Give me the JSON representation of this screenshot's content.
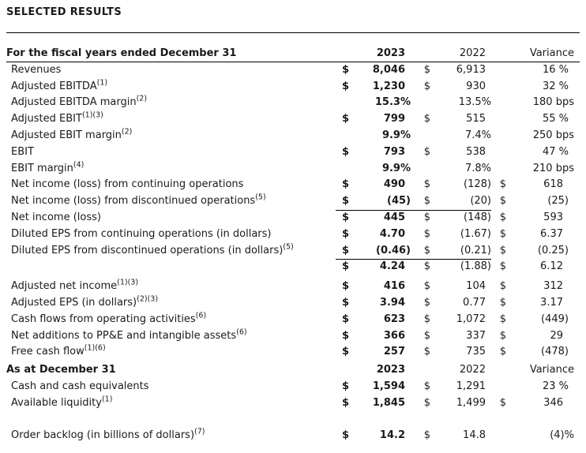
{
  "page": {
    "title": "SELECTED RESULTS"
  },
  "s1": {
    "header": {
      "label": "For the fiscal years ended December 31",
      "c1": "2023",
      "c2": "2022",
      "c3": "Variance"
    },
    "rows": [
      {
        "label": "Revenues",
        "sup": "",
        "d1": "$",
        "v1": "8,046",
        "d2": "$",
        "v2": "6,913",
        "d3": "",
        "v3": "16 %"
      },
      {
        "label": "Adjusted EBITDA",
        "sup": "(1)",
        "d1": "$",
        "v1": "1,230",
        "d2": "$",
        "v2": "930",
        "d3": "",
        "v3": "32 %"
      },
      {
        "label": "Adjusted EBITDA margin",
        "sup": "(2)",
        "d1": "",
        "v1": "15.3%",
        "d2": "",
        "v2": "13.5%",
        "d3": "",
        "v3": "180 bps"
      },
      {
        "label": "Adjusted EBIT",
        "sup": "(1)(3)",
        "d1": "$",
        "v1": "799",
        "d2": "$",
        "v2": "515",
        "d3": "",
        "v3": "55 %"
      },
      {
        "label": "Adjusted EBIT margin",
        "sup": "(2)",
        "d1": "",
        "v1": "9.9%",
        "d2": "",
        "v2": "7.4%",
        "d3": "",
        "v3": "250 bps"
      },
      {
        "label": "EBIT",
        "sup": "",
        "d1": "$",
        "v1": "793",
        "d2": "$",
        "v2": "538",
        "d3": "",
        "v3": "47 %"
      },
      {
        "label": "EBIT margin",
        "sup": "(4)",
        "d1": "",
        "v1": "9.9%",
        "d2": "",
        "v2": "7.8%",
        "d3": "",
        "v3": "210 bps"
      },
      {
        "label": "Net income (loss) from continuing operations",
        "sup": "",
        "d1": "$",
        "v1": "490",
        "d2": "$",
        "v2": "(128)",
        "d3": "$",
        "v3": "618"
      },
      {
        "label": "Net income (loss) from discontinued operations",
        "sup": "(5)",
        "d1": "$",
        "v1": "(45)",
        "d2": "$",
        "v2": "(20)",
        "d3": "$",
        "v3": "(25)"
      },
      {
        "label": "Net income (loss)",
        "sup": "",
        "d1": "$",
        "v1": "445",
        "d2": "$",
        "v2": "(148)",
        "d3": "$",
        "v3": "593"
      },
      {
        "label": "Diluted EPS from continuing operations (in dollars)",
        "sup": "",
        "d1": "$",
        "v1": "4.70",
        "d2": "$",
        "v2": "(1.67)",
        "d3": "$",
        "v3": "6.37"
      },
      {
        "label": "Diluted EPS from discontinued operations (in dollars)",
        "sup": "(5)",
        "d1": "$",
        "v1": "(0.46)",
        "d2": "$",
        "v2": "(0.21)",
        "d3": "$",
        "v3": "(0.25)"
      },
      {
        "label": "",
        "sup": "",
        "d1": "$",
        "v1": "4.24",
        "d2": "$",
        "v2": "(1.88)",
        "d3": "$",
        "v3": "6.12"
      },
      {
        "label": "Adjusted net income",
        "sup": "(1)(3)",
        "d1": "$",
        "v1": "416",
        "d2": "$",
        "v2": "104",
        "d3": "$",
        "v3": "312"
      },
      {
        "label": "Adjusted EPS (in dollars)",
        "sup": "(2)(3)",
        "d1": "$",
        "v1": "3.94",
        "d2": "$",
        "v2": "0.77",
        "d3": "$",
        "v3": "3.17"
      },
      {
        "label": "Cash flows from operating activities",
        "sup": "(6)",
        "d1": "$",
        "v1": "623",
        "d2": "$",
        "v2": "1,072",
        "d3": "$",
        "v3": "(449)"
      },
      {
        "label": "Net additions to PP&E and intangible assets",
        "sup": "(6)",
        "d1": "$",
        "v1": "366",
        "d2": "$",
        "v2": "337",
        "d3": "$",
        "v3": "29"
      },
      {
        "label": "Free cash flow",
        "sup": "(1)(6)",
        "d1": "$",
        "v1": "257",
        "d2": "$",
        "v2": "735",
        "d3": "$",
        "v3": "(478)"
      }
    ]
  },
  "s2": {
    "header": {
      "label": "As at December 31",
      "c1": "2023",
      "c2": "2022",
      "c3": "Variance"
    },
    "rows": [
      {
        "label": "Cash and cash equivalents",
        "sup": "",
        "d1": "$",
        "v1": "1,594",
        "d2": "$",
        "v2": "1,291",
        "d3": "",
        "v3": "23 %"
      },
      {
        "label": "Available liquidity",
        "sup": "(1)",
        "d1": "$",
        "v1": "1,845",
        "d2": "$",
        "v2": "1,499",
        "d3": "$",
        "v3": "346"
      }
    ],
    "backlog": {
      "label": "Order backlog (in billions of dollars)",
      "sup": "(7)",
      "d1": "$",
      "v1": "14.2",
      "d2": "$",
      "v2": "14.8",
      "d3": "",
      "v3": "(4)%"
    }
  },
  "colors": {
    "text": "#1a1a1a",
    "rule": "#000000"
  }
}
